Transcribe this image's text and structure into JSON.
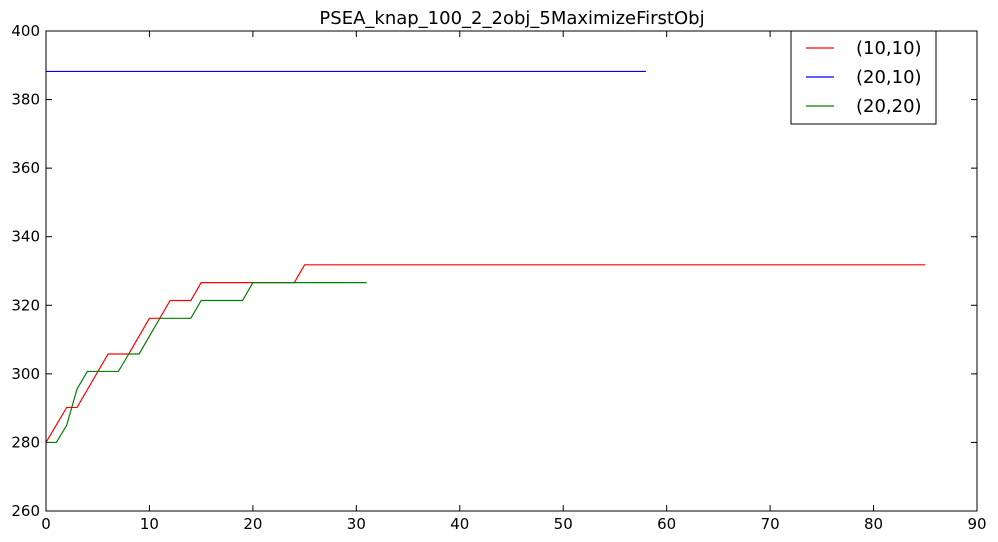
{
  "chart_data": {
    "type": "line",
    "title": "PSEA_knap_100_2_2obj_5MaximizeFirstObj",
    "xlabel": "",
    "ylabel": "",
    "xlim": [
      0,
      90
    ],
    "ylim": [
      260,
      400
    ],
    "xticks": [
      0,
      10,
      20,
      30,
      40,
      50,
      60,
      70,
      80,
      90
    ],
    "yticks": [
      260,
      280,
      300,
      320,
      340,
      360,
      380,
      400
    ],
    "grid": false,
    "legend_position": "top-right",
    "series": [
      {
        "name": "(10,10)",
        "color": "#ff0000",
        "points": [
          [
            0,
            280
          ],
          [
            2,
            290.2
          ],
          [
            3,
            290.2
          ],
          [
            6,
            305.8
          ],
          [
            8,
            305.8
          ],
          [
            10,
            316.2
          ],
          [
            11,
            316.2
          ],
          [
            12,
            321.4
          ],
          [
            14,
            321.4
          ],
          [
            15,
            326.6
          ],
          [
            24,
            326.6
          ],
          [
            25,
            331.8
          ],
          [
            85,
            331.8
          ]
        ]
      },
      {
        "name": "(20,10)",
        "color": "#0000ff",
        "points": [
          [
            0,
            388.2
          ],
          [
            58,
            388.2
          ]
        ]
      },
      {
        "name": "(20,20)",
        "color": "#008000",
        "points": [
          [
            0,
            280
          ],
          [
            1,
            280
          ],
          [
            2,
            285
          ],
          [
            3,
            295.6
          ],
          [
            4,
            300.7
          ],
          [
            7,
            300.7
          ],
          [
            8,
            305.8
          ],
          [
            9,
            305.8
          ],
          [
            11,
            316.2
          ],
          [
            14,
            316.2
          ],
          [
            15,
            321.4
          ],
          [
            19,
            321.4
          ],
          [
            20,
            326.6
          ],
          [
            31,
            326.6
          ]
        ]
      }
    ]
  }
}
